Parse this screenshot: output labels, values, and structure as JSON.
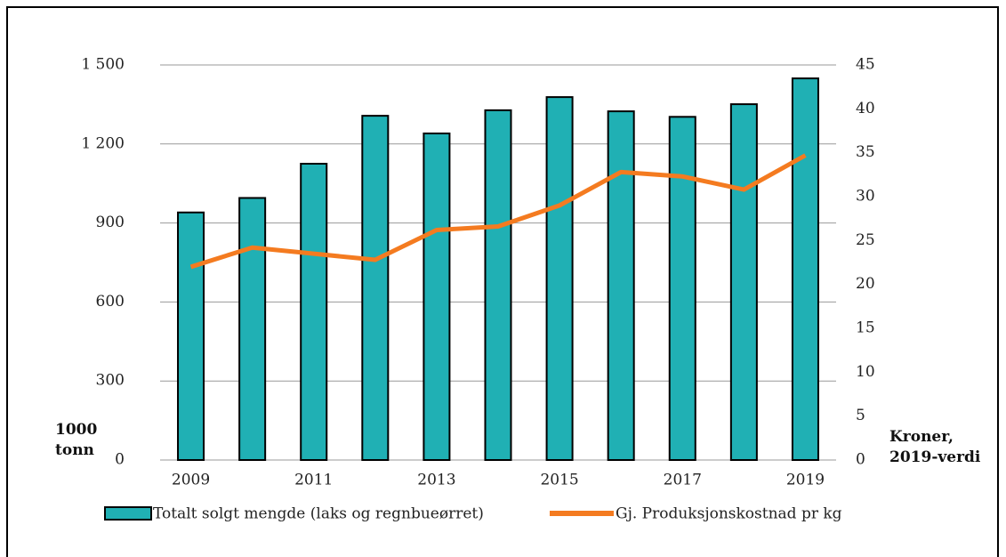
{
  "chart_data": {
    "type": "bar_line",
    "categories": [
      "2009",
      null,
      "2011",
      null,
      "2013",
      null,
      "2015",
      null,
      "2017",
      null,
      "2019"
    ],
    "series": [
      {
        "name": "Totalt solgt mengde (laks og regnbueørret)",
        "type": "bar",
        "color": "#20b0b4",
        "values": [
          940,
          995,
          1125,
          1307,
          1240,
          1328,
          1378,
          1324,
          1303,
          1351,
          1449
        ]
      },
      {
        "name": "Gj. Produksjonskostnad pr kg",
        "type": "line",
        "axis": "y2",
        "color": "#f47b20",
        "values": [
          22.0,
          24.2,
          23.5,
          22.8,
          26.2,
          26.6,
          29.0,
          32.8,
          32.3,
          30.8,
          34.7
        ]
      }
    ],
    "y_label": "1000 tonn",
    "y2_label": "Kroner, 2019-verdi",
    "ylim": [
      0,
      1500
    ],
    "yticks": [
      0,
      300,
      600,
      900,
      {
        "value": 1200,
        "label": "1 200"
      },
      {
        "value": 1500,
        "label": "1 500"
      }
    ],
    "y2lim": [
      0,
      45
    ],
    "y2ticks": [
      0,
      5,
      10,
      15,
      20,
      25,
      30,
      35,
      40,
      45
    ],
    "grid": true,
    "legend": "bottom"
  }
}
